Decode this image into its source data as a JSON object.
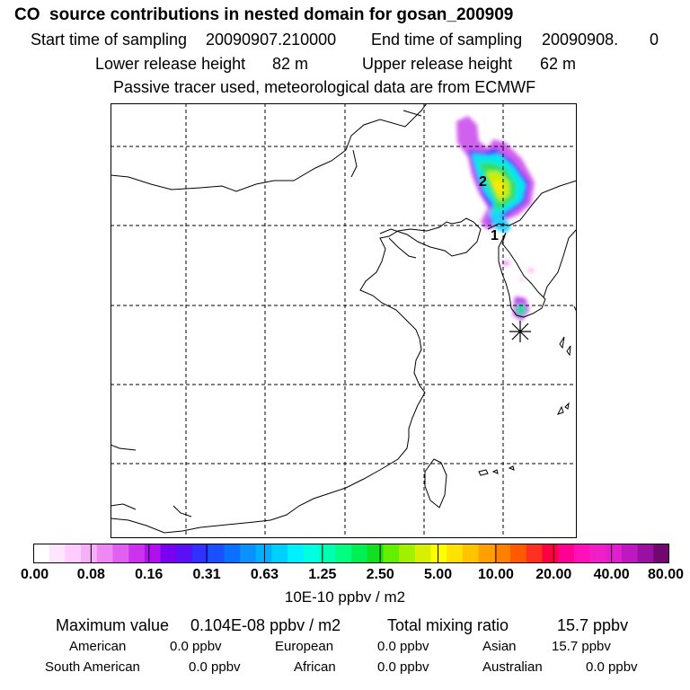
{
  "title": "CO  source contributions in nested domain for gosan_200909",
  "sampling": {
    "start_label": "Start time of sampling",
    "start_value": "20090907.210000",
    "end_label": "End time of sampling",
    "end_value": "20090908.",
    "end_extra": "0"
  },
  "release": {
    "lower_label": "Lower release height",
    "lower_value": "82 m",
    "upper_label": "Upper release height",
    "upper_value": "62 m"
  },
  "note": "Passive tracer used, meteorological data are from ECMWF",
  "map": {
    "labels": [
      "2",
      "1"
    ],
    "station_marker": "gosan-station-marker"
  },
  "colorbar": {
    "ticks": [
      "0.00",
      "0.08",
      "0.16",
      "0.31",
      "0.63",
      "1.25",
      "2.50",
      "5.00",
      "10.00",
      "20.00",
      "40.00",
      "80.00"
    ],
    "units": "10E-10 ppbv / m2",
    "colors": [
      "#ffffff",
      "#ffe6ff",
      "#ffccff",
      "#f5b0f7",
      "#ee88f3",
      "#e060ef",
      "#cc33ee",
      "#b010ee",
      "#7a00f0",
      "#5a10f5",
      "#3030ff",
      "#1a50ff",
      "#0a70ff",
      "#0a90ff",
      "#00b0ff",
      "#00d0ff",
      "#00f0ff",
      "#00ffe0",
      "#00ffb0",
      "#00ff80",
      "#00ef55",
      "#10e020",
      "#66ee00",
      "#a0f000",
      "#d8f000",
      "#ffff00",
      "#ffe200",
      "#ffc400",
      "#ffa000",
      "#ff8000",
      "#ff5a00",
      "#ff3020",
      "#ff0040",
      "#ff0090",
      "#ff10b8",
      "#f020c8",
      "#e020d0",
      "#c018c0",
      "#9a10a0",
      "#700870"
    ]
  },
  "stats": {
    "max_label": "Maximum value",
    "max_value": "0.104E-08 ppbv / m2",
    "total_label": "Total mixing ratio",
    "total_value": "15.7 ppbv"
  },
  "regions": [
    {
      "name": "American",
      "value": "0.0 ppbv"
    },
    {
      "name": "European",
      "value": "0.0 ppbv"
    },
    {
      "name": "Asian",
      "value": "15.7 ppbv"
    },
    {
      "name": "South American",
      "value": "0.0 ppbv"
    },
    {
      "name": "African",
      "value": "0.0 ppbv"
    },
    {
      "name": "Australian",
      "value": "0.0 ppbv"
    }
  ]
}
